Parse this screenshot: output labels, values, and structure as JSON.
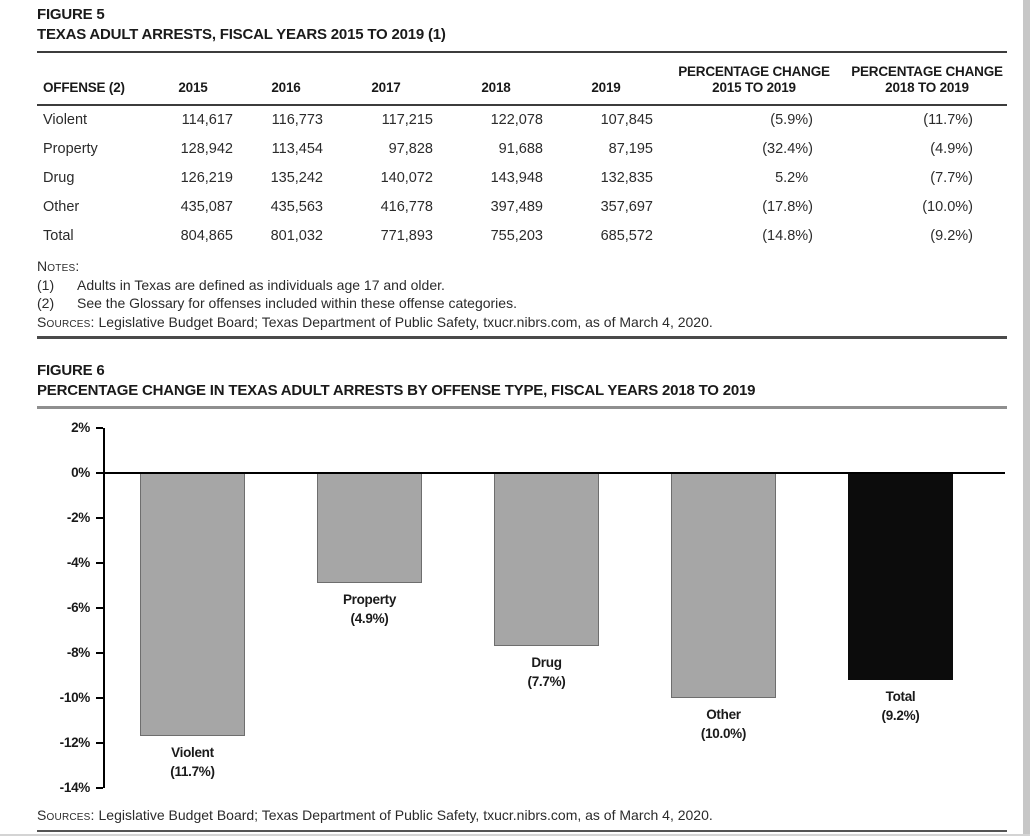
{
  "figure5": {
    "label": "FIGURE 5",
    "title": "TEXAS ADULT ARRESTS, FISCAL YEARS 2015 TO 2019 (1)",
    "table": {
      "columns": [
        {
          "label": [
            "OFFENSE (2)"
          ],
          "align": "left"
        },
        {
          "label": [
            "2015"
          ],
          "align": "year"
        },
        {
          "label": [
            "2016"
          ],
          "align": "year"
        },
        {
          "label": [
            "2017"
          ],
          "align": "year"
        },
        {
          "label": [
            "2018"
          ],
          "align": "year"
        },
        {
          "label": [
            "2019"
          ],
          "align": "year"
        },
        {
          "label": [
            "PERCENTAGE CHANGE",
            "2015 TO 2019"
          ],
          "align": "pct"
        },
        {
          "label": [
            "PERCENTAGE CHANGE",
            "2018 TO 2019"
          ],
          "align": "pct"
        }
      ],
      "rows": [
        [
          "Violent",
          "114,617",
          "116,773",
          "117,215",
          "122,078",
          "107,845",
          "(5.9%)",
          "(11.7%)"
        ],
        [
          "Property",
          "128,942",
          "113,454",
          "97,828",
          "91,688",
          "87,195",
          "(32.4%)",
          "(4.9%)"
        ],
        [
          "Drug",
          "126,219",
          "135,242",
          "140,072",
          "143,948",
          "132,835",
          "5.2%",
          "(7.7%)"
        ],
        [
          "Other",
          "435,087",
          "435,563",
          "416,778",
          "397,489",
          "357,697",
          "(17.8%)",
          "(10.0%)"
        ],
        [
          "Total",
          "804,865",
          "801,032",
          "771,893",
          "755,203",
          "685,572",
          "(14.8%)",
          "(9.2%)"
        ]
      ]
    },
    "notes_label": "Notes:",
    "notes": [
      {
        "num": "(1)",
        "text": "Adults in Texas are defined as individuals age 17 and older."
      },
      {
        "num": "(2)",
        "text": "See the Glossary for offenses included within these offense categories."
      }
    ],
    "sources_label": "Sources:",
    "sources_text": "Legislative Budget Board; Texas Department of Public Safety, txucr.nibrs.com, as of March 4, 2020."
  },
  "figure6": {
    "label": "FIGURE 6",
    "title": "PERCENTAGE CHANGE IN TEXAS ADULT ARRESTS BY OFFENSE TYPE, FISCAL YEARS 2018 TO 2019",
    "sources_label": "Sources:",
    "sources_text": "Legislative Budget Board; Texas Department of Public Safety, txucr.nibrs.com, as of March 4, 2020."
  },
  "chart_data": {
    "type": "bar",
    "title": "PERCENTAGE CHANGE IN TEXAS ADULT ARRESTS BY OFFENSE TYPE, FISCAL YEARS 2018 TO 2019",
    "categories": [
      "Violent",
      "Property",
      "Drug",
      "Other",
      "Total"
    ],
    "values": [
      -11.7,
      -4.9,
      -7.7,
      -10.0,
      -9.2
    ],
    "data_labels": [
      "(11.7%)",
      "(4.9%)",
      "(7.7%)",
      "(10.0%)",
      "(9.2%)"
    ],
    "bar_colors": [
      "#a6a6a6",
      "#a6a6a6",
      "#a6a6a6",
      "#a6a6a6",
      "#0c0c0c"
    ],
    "bar_border_colors": [
      "#6e6e6e",
      "#6e6e6e",
      "#6e6e6e",
      "#6e6e6e",
      "#0c0c0c"
    ],
    "ylim": [
      -14,
      2
    ],
    "ytick_values": [
      2,
      0,
      -2,
      -4,
      -6,
      -8,
      -10,
      -12,
      -14
    ],
    "ytick_labels": [
      "2%",
      "0%",
      "-2%",
      "-4%",
      "-6%",
      "-8%",
      "-10%",
      "-12%",
      "-14%"
    ],
    "xlabel": "",
    "ylabel": "",
    "grid": false,
    "zero_line": true,
    "legend": "none"
  }
}
